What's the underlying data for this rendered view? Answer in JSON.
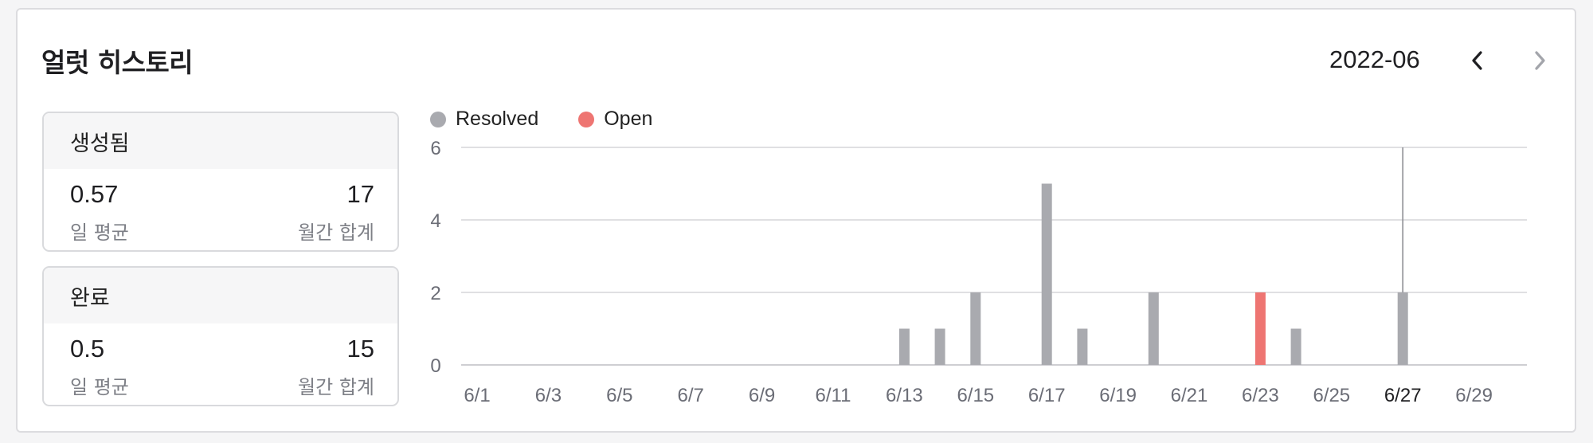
{
  "header": {
    "title": "얼럿 히스토리",
    "month": "2022-06",
    "prev_icon": "chevron-left-icon",
    "next_icon": "chevron-right-icon"
  },
  "stats": [
    {
      "title": "생성됨",
      "daily_avg": "0.57",
      "daily_avg_label": "일 평균",
      "monthly_total": "17",
      "monthly_total_label": "월간 합계"
    },
    {
      "title": "완료",
      "daily_avg": "0.5",
      "daily_avg_label": "일 평균",
      "monthly_total": "15",
      "monthly_total_label": "월간 합계"
    }
  ],
  "colors": {
    "resolved": "#a9aaaf",
    "open": "#ee7572",
    "grid": "#d6d6d9",
    "axis_text": "#6b6d76"
  },
  "chart_data": {
    "type": "bar",
    "legend": [
      {
        "name": "Resolved",
        "color": "#a9aaaf"
      },
      {
        "name": "Open",
        "color": "#ee7572"
      }
    ],
    "ylim": [
      0,
      6
    ],
    "yticks": [
      0,
      2,
      4,
      6
    ],
    "categories": [
      "6/1",
      "6/2",
      "6/3",
      "6/4",
      "6/5",
      "6/6",
      "6/7",
      "6/8",
      "6/9",
      "6/10",
      "6/11",
      "6/12",
      "6/13",
      "6/14",
      "6/15",
      "6/16",
      "6/17",
      "6/18",
      "6/19",
      "6/20",
      "6/21",
      "6/22",
      "6/23",
      "6/24",
      "6/25",
      "6/26",
      "6/27",
      "6/28",
      "6/29",
      "6/30"
    ],
    "xtick_labels": [
      "6/1",
      "6/3",
      "6/5",
      "6/7",
      "6/9",
      "6/11",
      "6/13",
      "6/15",
      "6/17",
      "6/19",
      "6/21",
      "6/23",
      "6/25",
      "6/27",
      "6/29"
    ],
    "highlight_label": "6/27",
    "series": [
      {
        "name": "Resolved",
        "values": [
          0,
          0,
          0,
          0,
          0,
          0,
          0,
          0,
          0,
          0,
          0,
          0,
          1,
          1,
          2,
          0,
          5,
          1,
          0,
          2,
          0,
          0,
          0,
          1,
          0,
          0,
          2,
          0,
          0,
          0
        ]
      },
      {
        "name": "Open",
        "values": [
          0,
          0,
          0,
          0,
          0,
          0,
          0,
          0,
          0,
          0,
          0,
          0,
          0,
          0,
          0,
          0,
          0,
          0,
          0,
          0,
          0,
          0,
          2,
          0,
          0,
          0,
          0,
          0,
          0,
          0
        ]
      }
    ],
    "hover_category": "6/27"
  }
}
